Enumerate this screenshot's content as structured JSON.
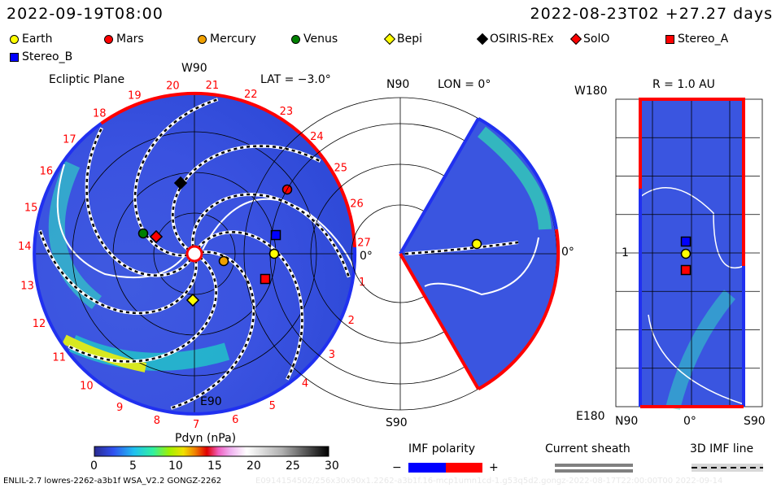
{
  "header": {
    "left_time": "2022-09-19T08:00",
    "right_time": "2022-08-23T02 +27.27 days"
  },
  "legend": [
    {
      "name": "Earth",
      "color": "#ffff00",
      "shape": "circle"
    },
    {
      "name": "Mars",
      "color": "#ff0000",
      "shape": "circle"
    },
    {
      "name": "Mercury",
      "color": "#f0a000",
      "shape": "circle"
    },
    {
      "name": "Venus",
      "color": "#008000",
      "shape": "circle"
    },
    {
      "name": "Bepi",
      "color": "#ffff00",
      "shape": "diamond"
    },
    {
      "name": "OSIRIS-REx",
      "color": "#000000",
      "shape": "diamond"
    },
    {
      "name": "SolO",
      "color": "#ff0000",
      "shape": "diamond"
    },
    {
      "name": "Stereo_A",
      "color": "#ff0000",
      "shape": "square"
    },
    {
      "name": "Stereo_B",
      "color": "#0000ff",
      "shape": "square"
    }
  ],
  "panels": {
    "ecliptic": {
      "title": "Ecliptic Plane",
      "lat": "LAT = −3.0°",
      "top": "W90",
      "bottom": "E90",
      "right": "0°",
      "sectors": [
        "27",
        "26",
        "25",
        "24",
        "23",
        "22",
        "21",
        "20",
        "19",
        "18",
        "17",
        "16",
        "15",
        "14",
        "13",
        "12",
        "11",
        "10",
        "9",
        "8",
        "7",
        "6",
        "5",
        "4",
        "3",
        "2",
        "1"
      ]
    },
    "meridional": {
      "title": "LON = 0°",
      "top": "N90",
      "bottom": "S90",
      "right": "0°"
    },
    "radial": {
      "title": "R = 1.0 AU",
      "top_left": "W180",
      "bottom_left": "E180",
      "mid_left": "1",
      "bottom_labels": [
        "N90",
        "0°",
        "S90"
      ]
    }
  },
  "chart_data": {
    "type": "heatmap",
    "colorbar": {
      "label": "Pdyn (nPa)",
      "ticks": [
        "0",
        "5",
        "10",
        "15",
        "20",
        "25",
        "30"
      ],
      "range": [
        0,
        30
      ]
    },
    "imf_polarity": {
      "label": "IMF polarity",
      "minus": "−",
      "plus": "+",
      "colors": [
        "#0000ff",
        "#ff0000"
      ]
    },
    "current_sheath": {
      "label": "Current sheath"
    },
    "imf_line": {
      "label": "3D IMF line"
    }
  },
  "footer": {
    "model": "ENLIL-2.7 lowres-2262-a3b1f WSA_V2.2 GONGZ-2262",
    "run": "E0914154502/256x30x90x1.2262-a3b1f.16-mcp1umn1cd-1.g53q5d2.gongz-2022-08-17T22:00:00T00   2022-09-14"
  }
}
